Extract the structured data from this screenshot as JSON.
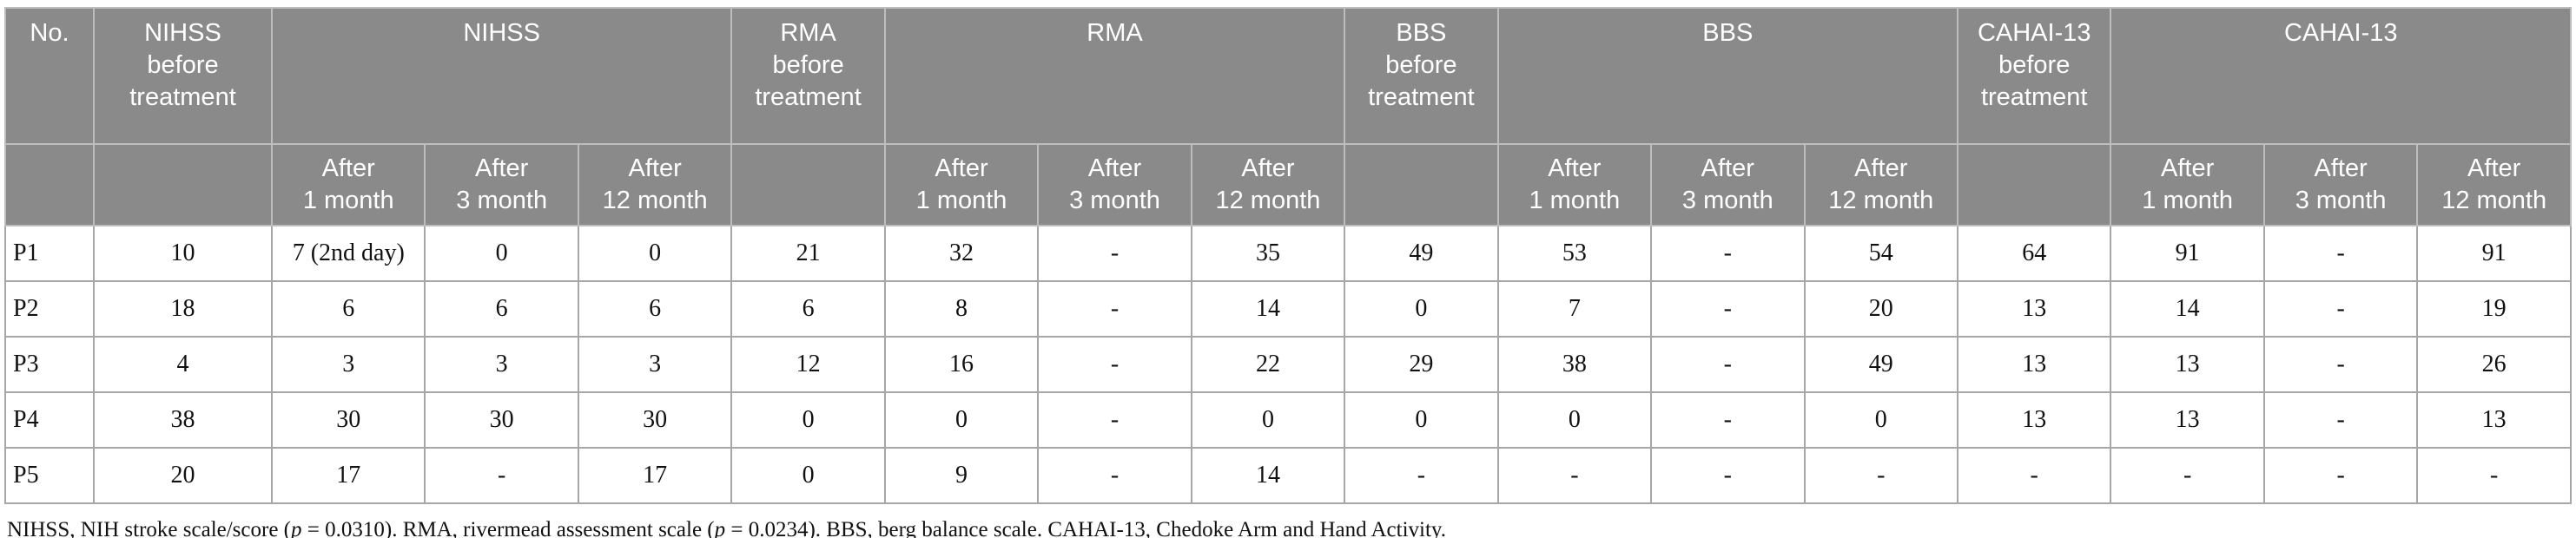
{
  "colors": {
    "header_bg": "#8a8a8a",
    "header_text": "#ffffff",
    "header_border": "#bdbdbd",
    "body_border": "#a6a6a6",
    "body_text": "#111111"
  },
  "table": {
    "header": {
      "no_label": "No.",
      "groups": [
        {
          "before_label": "NIHSS\nbefore\ntreatment",
          "group_label": "NIHSS"
        },
        {
          "before_label": "RMA\nbefore\ntreatment",
          "group_label": "RMA"
        },
        {
          "before_label": "BBS\nbefore\ntreatment",
          "group_label": "BBS"
        },
        {
          "before_label": "CAHAI-13\nbefore\ntreatment",
          "group_label": "CAHAI-13"
        }
      ],
      "after_labels": [
        "After\n1 month",
        "After\n3 month",
        "After\n12 month"
      ]
    },
    "rows": [
      {
        "id": "P1",
        "values": [
          "10",
          "7 (2nd day)",
          "0",
          "0",
          "21",
          "32",
          "-",
          "35",
          "49",
          "53",
          "-",
          "54",
          "64",
          "91",
          "-",
          "91"
        ]
      },
      {
        "id": "P2",
        "values": [
          "18",
          "6",
          "6",
          "6",
          "6",
          "8",
          "-",
          "14",
          "0",
          "7",
          "-",
          "20",
          "13",
          "14",
          "-",
          "19"
        ]
      },
      {
        "id": "P3",
        "values": [
          "4",
          "3",
          "3",
          "3",
          "12",
          "16",
          "-",
          "22",
          "29",
          "38",
          "-",
          "49",
          "13",
          "13",
          "-",
          "26"
        ]
      },
      {
        "id": "P4",
        "values": [
          "38",
          "30",
          "30",
          "30",
          "0",
          "0",
          "-",
          "0",
          "0",
          "0",
          "-",
          "0",
          "13",
          "13",
          "-",
          "13"
        ]
      },
      {
        "id": "P5",
        "values": [
          "20",
          "17",
          "-",
          "17",
          "0",
          "9",
          "-",
          "14",
          "-",
          "-",
          "-",
          "-",
          "-",
          "-",
          "-",
          "-"
        ]
      }
    ]
  },
  "footnote": {
    "segments": [
      {
        "text": "NIHSS, NIH stroke scale/score (",
        "italic": false
      },
      {
        "text": "p",
        "italic": true
      },
      {
        "text": " = 0.0310). RMA, rivermead assessment scale (",
        "italic": false
      },
      {
        "text": "p",
        "italic": true
      },
      {
        "text": " = 0.0234). BBS, berg balance scale. CAHAI-13, Chedoke Arm and Hand Activity.",
        "italic": false
      }
    ]
  }
}
